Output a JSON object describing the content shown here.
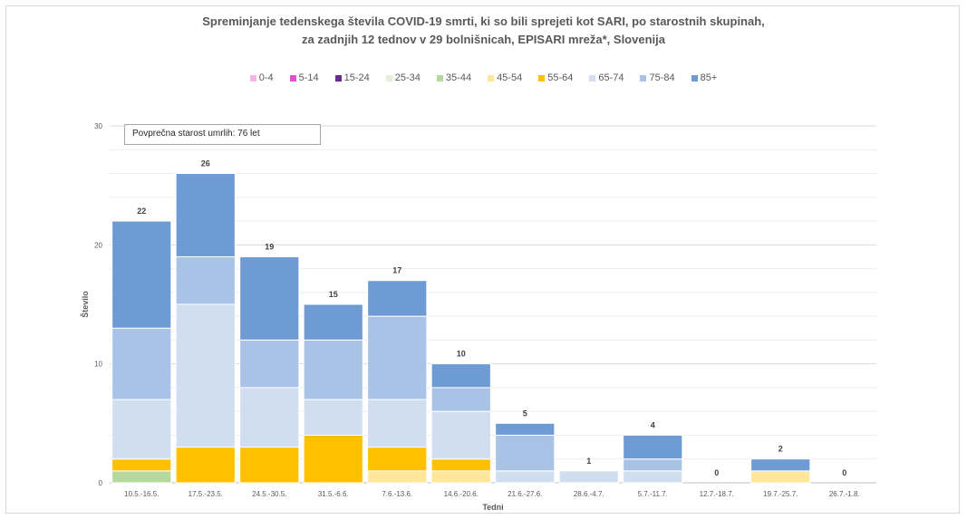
{
  "chart_data": {
    "type": "bar",
    "stacked": true,
    "title_line1": "Spreminjanje tedenskega števila COVID-19 smrti, ki so bili sprejeti kot SARI, po starostnih skupinah,",
    "title_line2": "za zadnjih 12 tednov v 29 bolnišnicah, EPISARI mreža*, Slovenija",
    "xlabel": "Tedni",
    "ylabel": "Število",
    "ylim": [
      0,
      30
    ],
    "yticks": [
      0,
      10,
      20,
      30
    ],
    "grid": true,
    "legend_position": "top",
    "annotation": "Povprečna starost umrlih: 76 let",
    "categories": [
      "10.5.-16.5.",
      "17.5.-23.5.",
      "24.5.-30.5.",
      "31.5.-6.6.",
      "7.6.-13.6.",
      "14.6.-20.6.",
      "21.6.-27.6.",
      "28.6.-4.7.",
      "5.7.-11.7.",
      "12.7.-18.7.",
      "19.7.-25.7.",
      "26.7.-1.8."
    ],
    "totals": [
      22,
      26,
      19,
      15,
      17,
      10,
      5,
      1,
      4,
      0,
      2,
      0
    ],
    "series": [
      {
        "name": "0-4",
        "color": "#f4b6e8",
        "values": [
          0,
          0,
          0,
          0,
          0,
          0,
          0,
          0,
          0,
          0,
          0,
          0
        ]
      },
      {
        "name": "5-14",
        "color": "#e04fd0",
        "values": [
          0,
          0,
          0,
          0,
          0,
          0,
          0,
          0,
          0,
          0,
          0,
          0
        ]
      },
      {
        "name": "15-24",
        "color": "#6b2c91",
        "values": [
          0,
          0,
          0,
          0,
          0,
          0,
          0,
          0,
          0,
          0,
          0,
          0
        ]
      },
      {
        "name": "25-34",
        "color": "#e2f0d9",
        "values": [
          0,
          0,
          0,
          0,
          0,
          0,
          0,
          0,
          0,
          0,
          0,
          0
        ]
      },
      {
        "name": "35-44",
        "color": "#b5d99c",
        "values": [
          1,
          0,
          0,
          0,
          0,
          0,
          0,
          0,
          0,
          0,
          0,
          0
        ]
      },
      {
        "name": "45-54",
        "color": "#ffe699",
        "values": [
          0,
          0,
          0,
          0,
          1,
          1,
          0,
          0,
          0,
          0,
          1,
          0
        ]
      },
      {
        "name": "55-64",
        "color": "#ffc000",
        "values": [
          1,
          3,
          3,
          4,
          2,
          1,
          0,
          0,
          0,
          0,
          0,
          0
        ]
      },
      {
        "name": "65-74",
        "color": "#d0deef",
        "values": [
          5,
          12,
          5,
          3,
          4,
          4,
          1,
          1,
          1,
          0,
          0,
          0
        ]
      },
      {
        "name": "75-84",
        "color": "#a9c3e6",
        "values": [
          6,
          4,
          4,
          5,
          7,
          2,
          3,
          0,
          1,
          0,
          0,
          0
        ]
      },
      {
        "name": "85+",
        "color": "#6f9bd4",
        "values": [
          9,
          7,
          7,
          3,
          3,
          2,
          1,
          0,
          2,
          0,
          1,
          0
        ]
      }
    ]
  }
}
